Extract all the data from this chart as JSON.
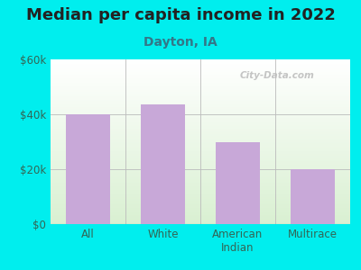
{
  "title": "Median per capita income in 2022",
  "subtitle": "Dayton, IA",
  "categories": [
    "All",
    "White",
    "American\nIndian",
    "Multirace"
  ],
  "values": [
    40000,
    43500,
    30000,
    20000
  ],
  "bar_color": "#c8a8d8",
  "background_color": "#00EEEE",
  "title_color": "#222222",
  "subtitle_color": "#337788",
  "tick_color": "#336655",
  "ylim": [
    0,
    60000
  ],
  "yticks": [
    0,
    20000,
    40000,
    60000
  ],
  "ytick_labels": [
    "$0",
    "$20k",
    "$40k",
    "$60k"
  ],
  "watermark": "City-Data.com",
  "title_fontsize": 13,
  "subtitle_fontsize": 10,
  "tick_fontsize": 8.5
}
